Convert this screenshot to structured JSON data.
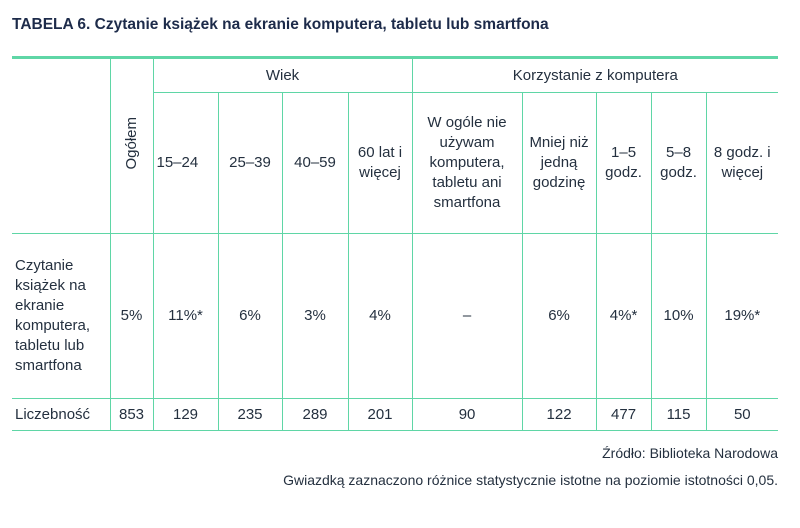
{
  "header": {
    "title": "TABELA 6. Czytanie książek na ekranie komputera, tabletu lub smartfona"
  },
  "table": {
    "group_headers": [
      "Wiek",
      "Korzystanie z komputera"
    ],
    "columns": [
      "Ogółem",
      "15–24",
      "25–39",
      "40–59",
      "60 lat i więcej",
      "W ogóle nie używam komputera, tabletu ani smartfona",
      "Mniej niż jedną godzinę",
      "1–5 godz.",
      "5–8 godz.",
      "8 godz. i więcej"
    ],
    "rows": [
      {
        "label": "Czytanie książek na ekranie komputera, tabletu lub smartfona",
        "cells": [
          "5%",
          "11%*",
          "6%",
          "3%",
          "4%",
          "–",
          "6%",
          "4%*",
          "10%",
          "19%*"
        ]
      },
      {
        "label": "Liczebność",
        "cells": [
          853,
          129,
          235,
          289,
          201,
          90,
          122,
          477,
          115,
          50
        ]
      }
    ]
  },
  "footer": {
    "source": "Źródło: Biblioteka Narodowa",
    "note": "Gwiazdką zaznaczono różnice statystycznie istotne na poziomie istotności 0,05."
  }
}
